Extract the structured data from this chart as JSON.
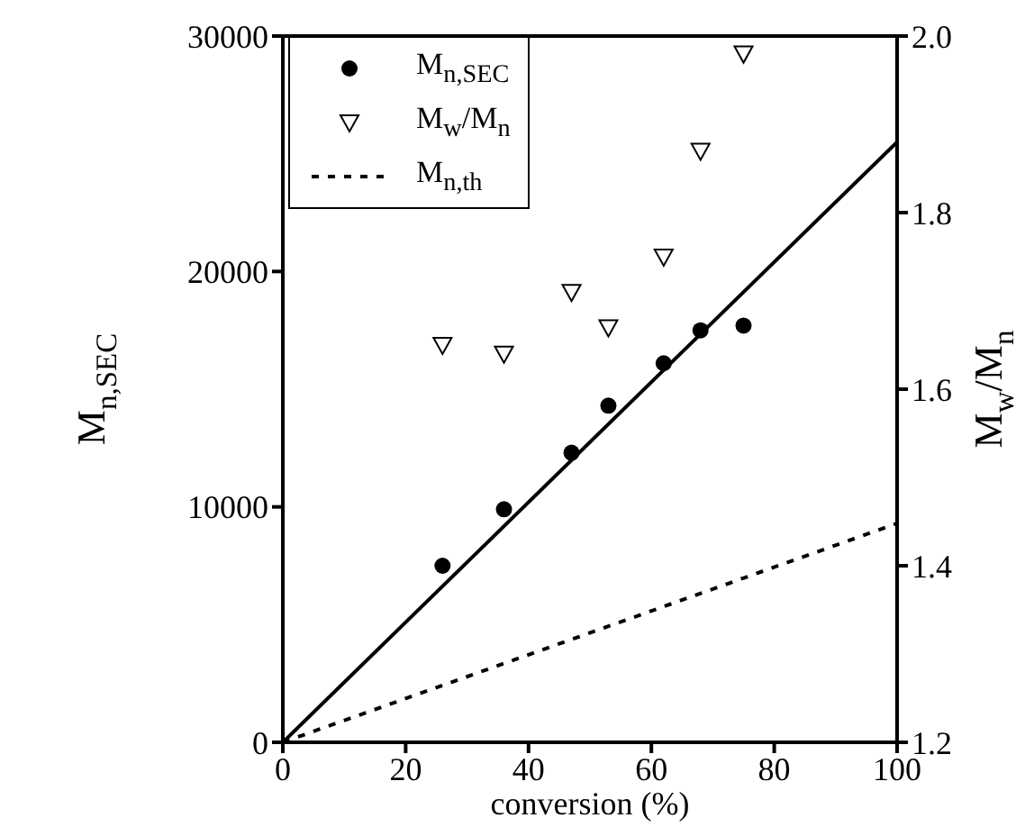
{
  "chart_data": {
    "type": "scatter",
    "xlabel": "conversion (%)",
    "ylabel": "M$_{n,SEC}$",
    "y2label": "M$_{w}$/M$_{n}$",
    "xlim": [
      0,
      100
    ],
    "xticks": [
      0,
      20,
      40,
      60,
      80,
      100
    ],
    "ylim": [
      0,
      30000
    ],
    "yticks": [
      0,
      10000,
      20000,
      30000
    ],
    "y2lim": [
      1.2,
      2.0
    ],
    "y2ticks": [
      {
        "value": 1.2,
        "label": "1.2"
      },
      {
        "value": 1.4,
        "label": "1.4"
      },
      {
        "value": 1.6,
        "label": "1.6"
      },
      {
        "value": 1.8,
        "label": "1.8"
      },
      {
        "value": 2,
        "label": "2.0"
      }
    ],
    "legend": "top left",
    "grid": false,
    "series": [
      {
        "name": "M$_{n,SEC}$",
        "marker": "circle",
        "color": "#000000",
        "x": [
          26,
          36,
          47,
          53,
          62,
          68,
          75
        ],
        "values": [
          7500,
          9900,
          12300,
          14300,
          16100,
          17500,
          17700
        ]
      },
      {
        "name": "M$_{w}$/M$_{n}$",
        "marker": "triangle",
        "axis": "y2",
        "color": "#000000",
        "x": [
          26,
          36,
          47,
          53,
          62,
          68,
          75
        ],
        "values": [
          1.65,
          1.64,
          1.71,
          1.67,
          1.75,
          1.87,
          1.98
        ]
      },
      {
        "type": "line",
        "marker": "none",
        "line_style": "solid",
        "color": "#000000",
        "x": [
          0,
          100
        ],
        "values": [
          0,
          25500
        ]
      },
      {
        "name": "M$_{n,th}$",
        "type": "line",
        "marker": "none",
        "line_style": "dashed",
        "color": "#000000",
        "x": [
          0,
          100
        ],
        "values": [
          0,
          9300
        ]
      }
    ]
  }
}
